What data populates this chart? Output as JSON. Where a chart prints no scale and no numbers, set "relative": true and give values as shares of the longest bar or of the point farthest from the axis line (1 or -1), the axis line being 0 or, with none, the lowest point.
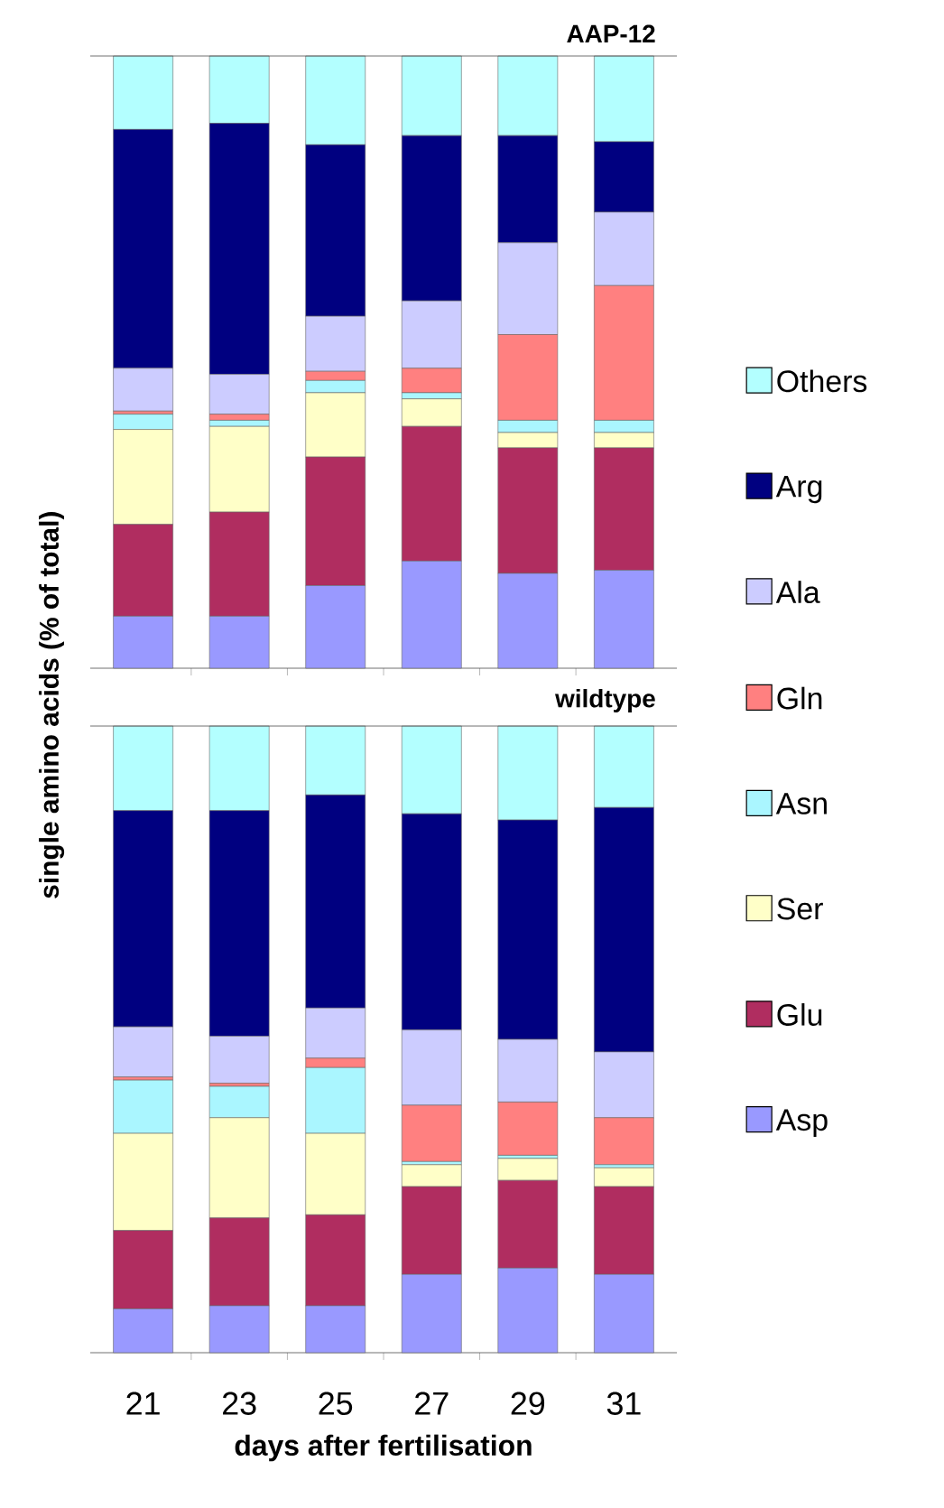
{
  "chart_data": [
    {
      "type": "bar",
      "stacked": true,
      "relative": true,
      "title": "AAP-12",
      "ylabel": "single amino acids (% of total)",
      "legend": "right",
      "tick_labels": false,
      "categories": [
        "21",
        "23",
        "25",
        "27",
        "29",
        "31"
      ],
      "series": [
        {
          "name": "Asp",
          "color": "#9999ff",
          "values": [
            0.085,
            0.085,
            0.135,
            0.175,
            0.155,
            0.16
          ]
        },
        {
          "name": "Glu",
          "color": "#b02d60",
          "values": [
            0.15,
            0.17,
            0.21,
            0.22,
            0.205,
            0.2
          ]
        },
        {
          "name": "Ser",
          "color": "#ffffc8",
          "values": [
            0.155,
            0.14,
            0.105,
            0.045,
            0.025,
            0.025
          ]
        },
        {
          "name": "Asn",
          "color": "#aaf6ff",
          "values": [
            0.025,
            0.01,
            0.02,
            0.01,
            0.02,
            0.02
          ]
        },
        {
          "name": "Gln",
          "color": "#ff8080",
          "values": [
            0.005,
            0.01,
            0.015,
            0.04,
            0.14,
            0.22
          ]
        },
        {
          "name": "Ala",
          "color": "#ccccff",
          "values": [
            0.07,
            0.065,
            0.09,
            0.11,
            0.15,
            0.12
          ]
        },
        {
          "name": "Arg",
          "color": "#000080",
          "values": [
            0.39,
            0.41,
            0.28,
            0.27,
            0.175,
            0.115
          ]
        },
        {
          "name": "Others",
          "color": "#b3ffff",
          "values": [
            0.12,
            0.11,
            0.145,
            0.13,
            0.13,
            0.14
          ]
        }
      ]
    },
    {
      "type": "bar",
      "stacked": true,
      "relative": true,
      "title": "wildtype",
      "xlabel": "days after fertilisation",
      "categories": [
        "21",
        "23",
        "25",
        "27",
        "29",
        "31"
      ],
      "series": [
        {
          "color": "#9999ff",
          "values": [
            0.07,
            0.075,
            0.075,
            0.125,
            0.135,
            0.125
          ]
        },
        {
          "color": "#b02d60",
          "values": [
            0.125,
            0.14,
            0.145,
            0.14,
            0.14,
            0.14
          ]
        },
        {
          "color": "#ffffc8",
          "values": [
            0.155,
            0.16,
            0.13,
            0.035,
            0.035,
            0.03
          ]
        },
        {
          "color": "#aaf6ff",
          "values": [
            0.085,
            0.05,
            0.105,
            0.005,
            0.005,
            0.005
          ]
        },
        {
          "color": "#ff8080",
          "values": [
            0.005,
            0.005,
            0.015,
            0.09,
            0.085,
            0.075
          ]
        },
        {
          "color": "#ccccff",
          "values": [
            0.08,
            0.075,
            0.08,
            0.12,
            0.1,
            0.105
          ]
        },
        {
          "color": "#000080",
          "values": [
            0.345,
            0.36,
            0.34,
            0.345,
            0.35,
            0.39
          ]
        },
        {
          "color": "#b3ffff",
          "values": [
            0.135,
            0.135,
            0.11,
            0.14,
            0.15,
            0.13
          ]
        }
      ]
    }
  ]
}
